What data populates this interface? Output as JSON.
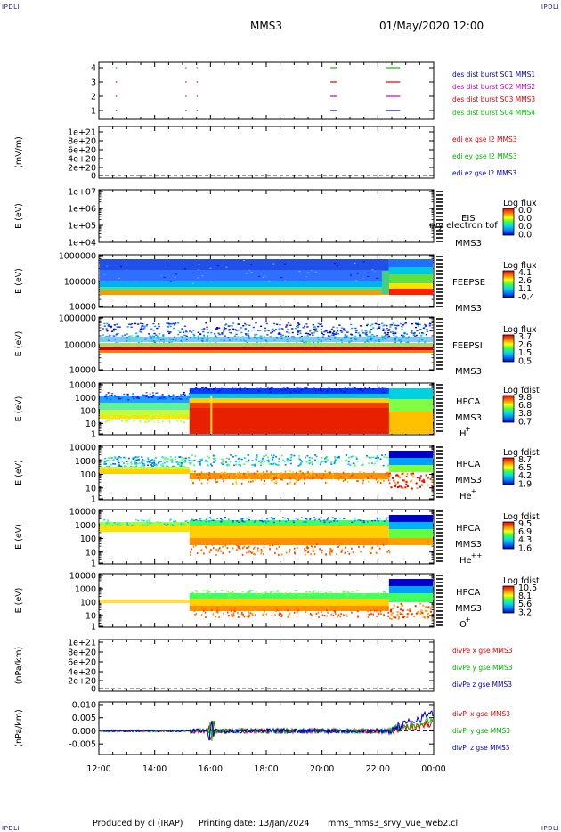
{
  "header": {
    "corner_label": "IPDLI",
    "spacecraft": "MMS3",
    "datetime": "01/May/2020 12:00"
  },
  "footer": {
    "produced_by": "Produced by cl (IRAP)",
    "printing_date": "Printing date: 13/Jan/2024",
    "file_name": "mms_mms3_srvy_vue_web2.cl"
  },
  "time_axis": {
    "start_hour": 12,
    "end_hour": 24,
    "tick_labels": [
      "12:00",
      "14:00",
      "16:00",
      "18:00",
      "20:00",
      "22:00",
      "00:00"
    ]
  },
  "panels": {
    "burst": {
      "yticks": [
        "4",
        "3",
        "2",
        "1"
      ],
      "legend": [
        {
          "text": "des dist burst SC1 MMS1",
          "color": "#0000c8"
        },
        {
          "text": "des dist burst SC2 MMS2",
          "color": "#c800c8"
        },
        {
          "text": "des dist burst SC3 MMS3",
          "color": "#e00000"
        },
        {
          "text": "des dist burst SC4 MMS4",
          "color": "#00c800"
        }
      ]
    },
    "edi": {
      "ylabel": "(mV/m)",
      "yticks": [
        "1e+21",
        "8e+20",
        "6e+20",
        "4e+20",
        "2e+20",
        "0"
      ],
      "legend": [
        {
          "text": "edi ex gse l2 MMS3",
          "color": "#e00000"
        },
        {
          "text": "edi ey gse l2 MMS3",
          "color": "#00b000"
        },
        {
          "text": "edi ez gse l2 MMS3",
          "color": "#0000c8"
        }
      ]
    },
    "eis": {
      "ylabel": "E (eV)",
      "yticks": [
        "1e+07",
        "1e+06",
        "1e+05",
        "1e+04"
      ],
      "instrument": "EIS",
      "overlay": "rvy electron tof",
      "sc": "MMS3",
      "cb_title": "Log flux",
      "cb_values": [
        "0.0",
        "0.0",
        "0.0",
        "0.0"
      ]
    },
    "feepse": {
      "ylabel": "E (eV)",
      "yticks": [
        "1000000",
        "100000",
        "10000"
      ],
      "instrument": "FEEPSE",
      "sc": "MMS3",
      "cb_title": "Log flux",
      "cb_values": [
        "4.1",
        "2.6",
        "1.1",
        "-0.4"
      ]
    },
    "feepsi": {
      "ylabel": "E (eV)",
      "yticks": [
        "1000000",
        "100000",
        "10000"
      ],
      "instrument": "FEEPSI",
      "sc": "MMS3",
      "cb_title": "Log flux",
      "cb_values": [
        "3.7",
        "2.6",
        "1.5",
        "0.5"
      ]
    },
    "hpca_h": {
      "ylabel": "E (eV)",
      "yticks": [
        "10000",
        "1000",
        "100",
        "10",
        "1"
      ],
      "instrument": "HPCA",
      "sc": "MMS3",
      "species": "H",
      "charge": "+",
      "cb_title": "Log fdist",
      "cb_values": [
        "9.8",
        "6.8",
        "3.8",
        "0.7"
      ]
    },
    "hpca_he": {
      "ylabel": "E (eV)",
      "yticks": [
        "10000",
        "1000",
        "100",
        "10",
        "1"
      ],
      "instrument": "HPCA",
      "sc": "MMS3",
      "species": "He",
      "charge": "+",
      "cb_title": "Log fdist",
      "cb_values": [
        "8.7",
        "6.5",
        "4.2",
        "1.9"
      ]
    },
    "hpca_hepp": {
      "ylabel": "E (eV)",
      "yticks": [
        "10000",
        "1000",
        "100",
        "10",
        "1"
      ],
      "instrument": "HPCA",
      "sc": "MMS3",
      "species": "He",
      "charge": "++",
      "cb_title": "Log fdist",
      "cb_values": [
        "9.5",
        "6.9",
        "4.3",
        "1.6"
      ]
    },
    "hpca_o": {
      "ylabel": "E (eV)",
      "yticks": [
        "10000",
        "1000",
        "100",
        "10",
        "1"
      ],
      "instrument": "HPCA",
      "sc": "MMS3",
      "species": "O",
      "charge": "+",
      "cb_title": "Log fdist",
      "cb_values": [
        "10.5",
        "8.1",
        "5.6",
        "3.2"
      ]
    },
    "divpe": {
      "ylabel": "(nPa/km)",
      "yticks": [
        "1e+21",
        "8e+20",
        "6e+20",
        "4e+20",
        "2e+20",
        "0"
      ],
      "legend": [
        {
          "text": "divPe x gse MMS3",
          "color": "#e00000"
        },
        {
          "text": "divPe y gse MMS3",
          "color": "#00b000"
        },
        {
          "text": "divPe z gse MMS3",
          "color": "#0000c8"
        }
      ]
    },
    "divpi": {
      "ylabel": "(nPa/km)",
      "yticks": [
        "0.010",
        "0.005",
        "0.000",
        "-0.005"
      ],
      "legend": [
        {
          "text": "divPi x gse MMS3",
          "color": "#e00000"
        },
        {
          "text": "divPi y gse MMS3",
          "color": "#00b000"
        },
        {
          "text": "divPi z gse MMS3",
          "color": "#0000c8"
        }
      ]
    }
  },
  "chart_data": {
    "type": "heatmap",
    "x_range_hours": [
      12,
      24
    ],
    "burst_intervals": [
      {
        "sc": 1,
        "start": 12.6,
        "end": 12.65
      },
      {
        "sc": 1,
        "start": 15.1,
        "end": 15.13
      },
      {
        "sc": 1,
        "start": 15.5,
        "end": 15.52
      },
      {
        "sc": 1,
        "start": 20.3,
        "end": 20.55
      },
      {
        "sc": 1,
        "start": 22.3,
        "end": 22.8
      },
      {
        "sc": 3,
        "start": 12.6,
        "end": 12.65
      },
      {
        "sc": 3,
        "start": 15.1,
        "end": 15.13
      },
      {
        "sc": 3,
        "start": 15.5,
        "end": 15.52
      },
      {
        "sc": 3,
        "start": 20.3,
        "end": 20.55
      },
      {
        "sc": 3,
        "start": 22.3,
        "end": 22.8
      },
      {
        "sc": 2,
        "start": 12.6,
        "end": 12.65
      },
      {
        "sc": 2,
        "start": 15.1,
        "end": 15.13
      },
      {
        "sc": 2,
        "start": 15.5,
        "end": 15.52
      },
      {
        "sc": 2,
        "start": 20.3,
        "end": 20.55
      },
      {
        "sc": 2,
        "start": 22.3,
        "end": 22.8
      },
      {
        "sc": 4,
        "start": 12.6,
        "end": 12.65
      },
      {
        "sc": 4,
        "start": 15.1,
        "end": 15.13
      },
      {
        "sc": 4,
        "start": 15.5,
        "end": 15.52
      },
      {
        "sc": 4,
        "start": 20.3,
        "end": 20.55
      },
      {
        "sc": 4,
        "start": 22.3,
        "end": 22.8
      }
    ],
    "divpi_ylim": [
      -0.009,
      0.011
    ],
    "time_markers": {
      "sheath_start": 15.25,
      "boundary": 22.4
    }
  }
}
